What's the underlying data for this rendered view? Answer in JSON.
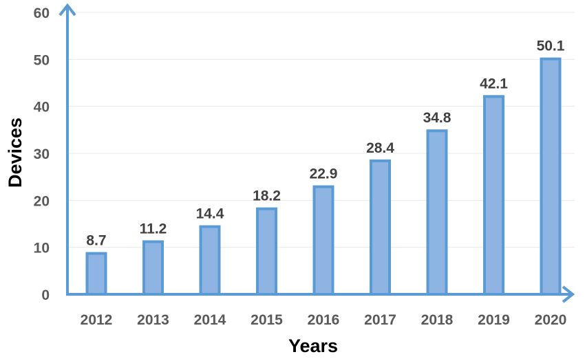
{
  "colors": {
    "bar_fill": "#8db4e2",
    "bar_stroke": "#5b9bd5",
    "axis": "#5b9bd5",
    "tick_text": "#595959",
    "label_text": "#404040"
  },
  "chart_data": {
    "type": "bar",
    "categories": [
      "2012",
      "2013",
      "2014",
      "2015",
      "2016",
      "2017",
      "2018",
      "2019",
      "2020"
    ],
    "values": [
      8.7,
      11.2,
      14.4,
      18.2,
      22.9,
      28.4,
      34.8,
      42.1,
      50.1
    ],
    "data_labels": [
      "8.7",
      "11.2",
      "14.4",
      "18.2",
      "22.9",
      "28.4",
      "34.8",
      "42.1",
      "50.1"
    ],
    "title": "",
    "xlabel": "Years",
    "ylabel": "Devices",
    "ylim": [
      0,
      60
    ],
    "yticks": [
      "0",
      "10",
      "20",
      "30",
      "40",
      "50",
      "60"
    ],
    "grid": true,
    "legend": "none"
  }
}
